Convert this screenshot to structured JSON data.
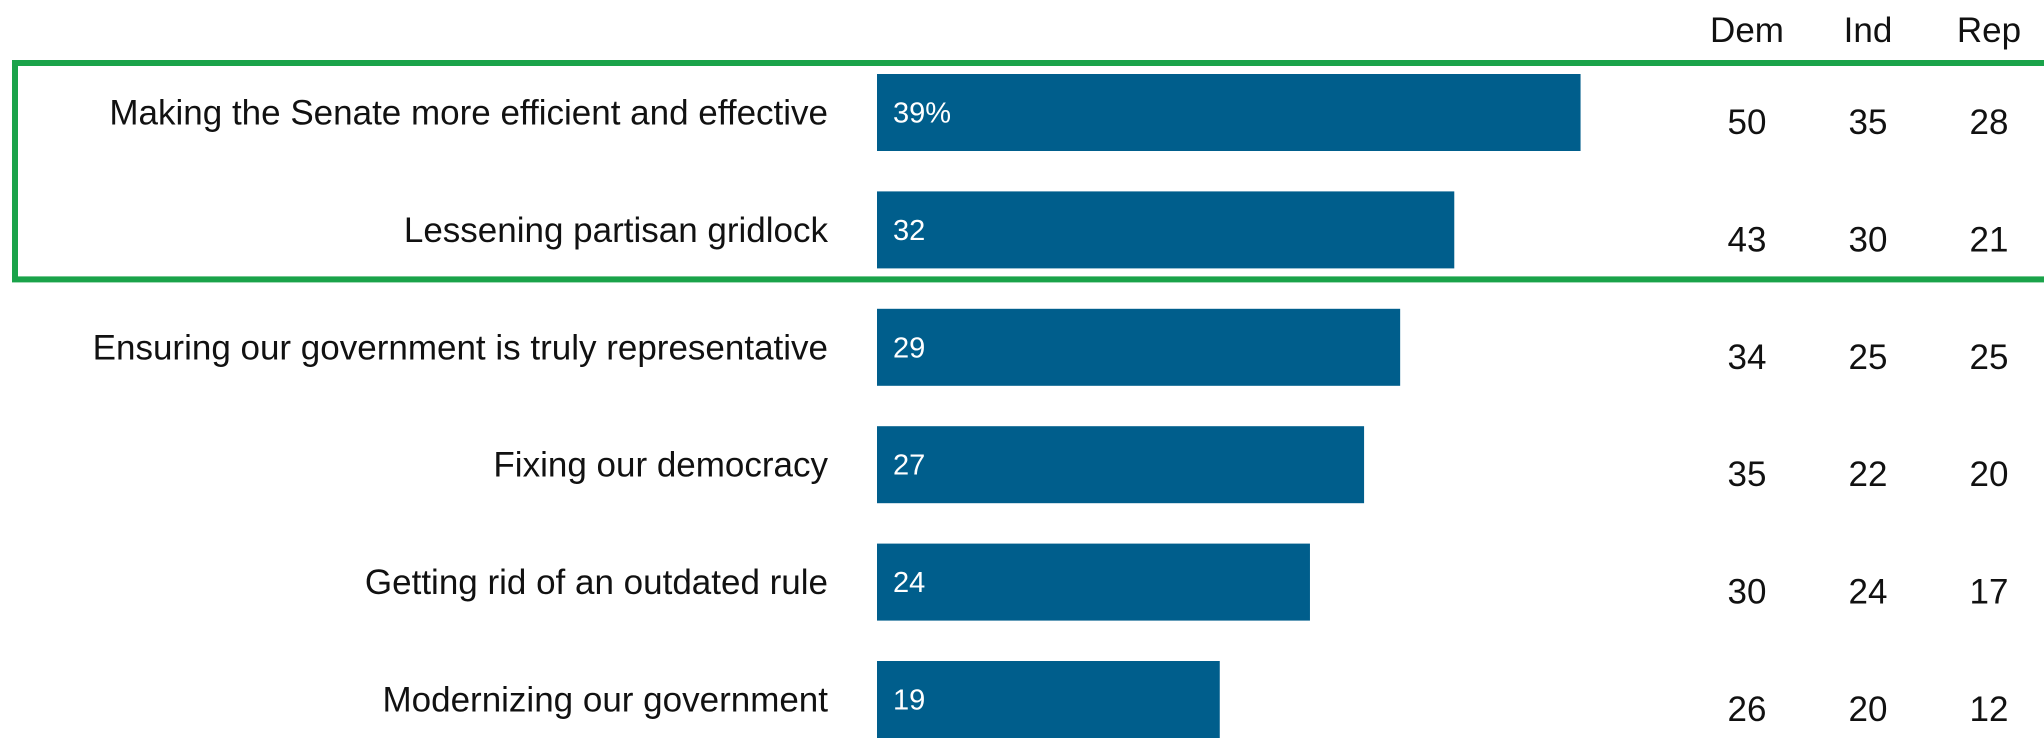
{
  "chart_data": {
    "type": "bar",
    "orientation": "horizontal",
    "categories": [
      "Making the Senate more efficient and effective",
      "Lessening partisan gridlock",
      "Ensuring our government is truly representative",
      "Fixing our democracy",
      "Getting rid of an outdated rule",
      "Modernizing our government"
    ],
    "values": [
      39,
      32,
      29,
      27,
      24,
      19
    ],
    "data_labels": [
      "39%",
      "32",
      "29",
      "27",
      "24",
      "19"
    ],
    "xlim": [
      0,
      100
    ],
    "grid": false,
    "legend": "none",
    "table": {
      "columns": [
        "Dem",
        "Ind",
        "Rep"
      ],
      "rows": [
        [
          50,
          35,
          28
        ],
        [
          43,
          30,
          21
        ],
        [
          34,
          25,
          25
        ],
        [
          35,
          22,
          20
        ],
        [
          30,
          24,
          17
        ],
        [
          26,
          20,
          12
        ]
      ]
    },
    "highlight": {
      "rows": [
        0,
        1
      ],
      "color": "#1aa34a"
    },
    "bar_color": "#005e8c",
    "title": "",
    "xlabel": "",
    "ylabel": ""
  }
}
